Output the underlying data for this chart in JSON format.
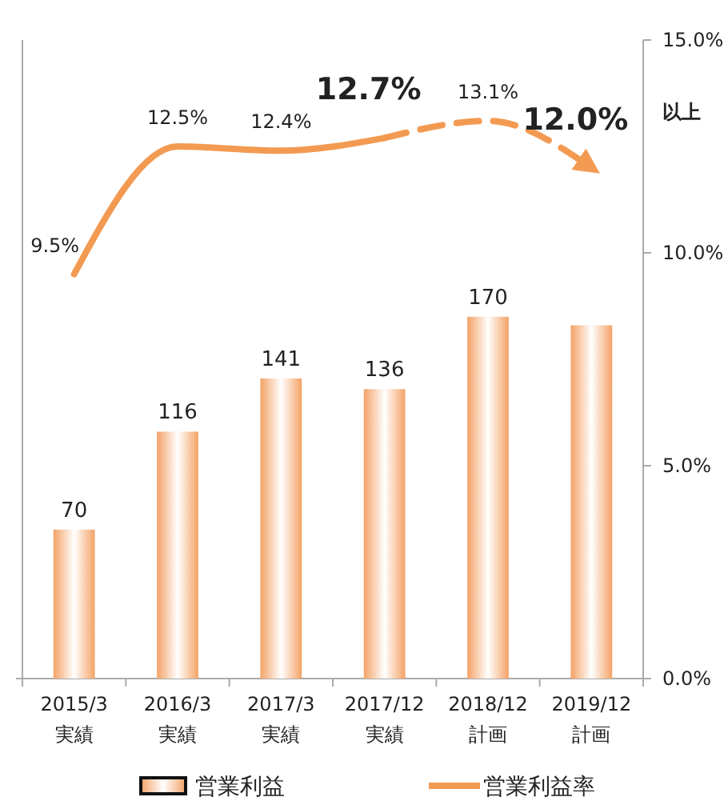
{
  "chart_data": {
    "type": "bar",
    "categories": [
      "2015/3\n実績",
      "2016/3\n実績",
      "2017/3\n実績",
      "2017/12\n実績",
      "2018/12\n計画",
      "2019/12\n計画"
    ],
    "ylim": [
      0,
      300
    ],
    "y2lim": [
      0,
      15
    ],
    "y2ticks": [
      {
        "value": 0,
        "label": "0.0%"
      },
      {
        "value": 5,
        "label": "5.0%"
      },
      {
        "value": 10,
        "label": "10.0%"
      },
      {
        "value": 15,
        "label": "15.0%"
      }
    ],
    "series": [
      {
        "name": "営業利益",
        "color": "#f4a266",
        "values": [
          70,
          116,
          141,
          136,
          170,
          166
        ],
        "value_labels": [
          "70",
          "116",
          "141",
          "136",
          "170",
          null
        ]
      },
      {
        "name": "営業利益率",
        "type": "line",
        "axis": "y2",
        "color": "#f39a52",
        "line_style": "solid",
        "values": [
          9.5,
          12.5,
          12.4,
          12.7,
          null,
          null
        ],
        "value_labels": [
          "9.5%",
          "12.5%",
          "12.4%",
          "12.7%",
          null,
          null
        ]
      },
      {
        "type": "line",
        "axis": "y2",
        "color": "#f39a52",
        "line_style": "dashed",
        "values": [
          null,
          null,
          null,
          12.7,
          13.1,
          12.0
        ],
        "value_labels": [
          null,
          null,
          null,
          null,
          "13.1%",
          "12.0%"
        ]
      }
    ],
    "annotations": [
      "以上"
    ],
    "legend": "bottom",
    "grid": false
  }
}
